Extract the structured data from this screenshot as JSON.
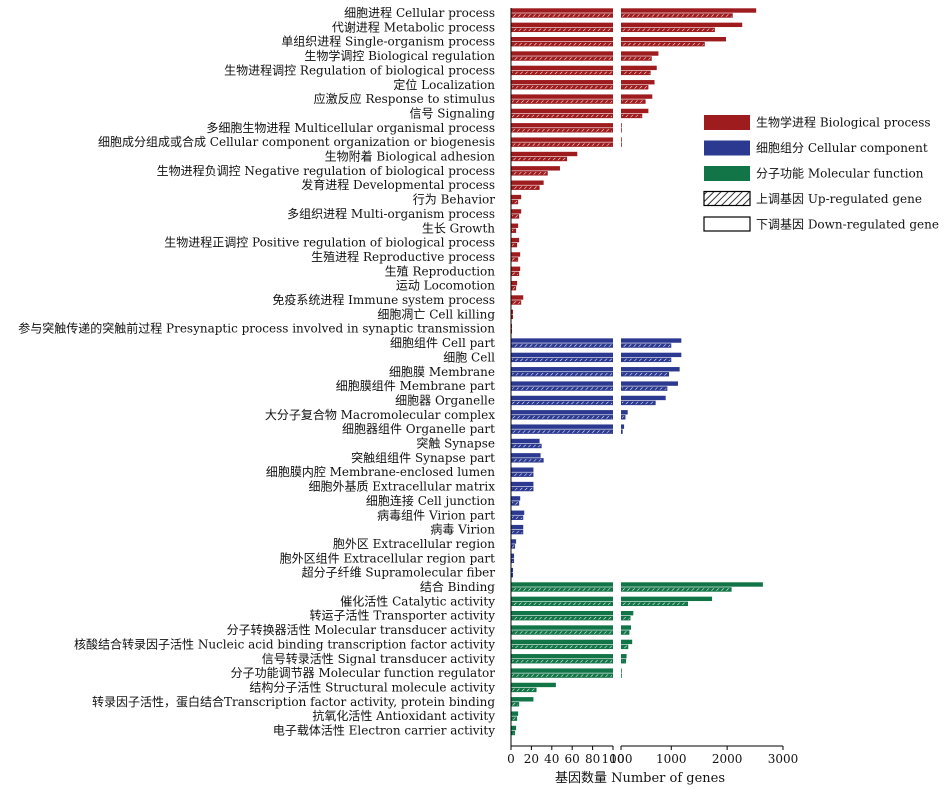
{
  "chart_data": {
    "type": "bar",
    "orientation": "horizontal",
    "xlabel": "基因数量 Number of genes",
    "x_axis_broken": true,
    "x_ticks_left": [
      0,
      20,
      40,
      60,
      80,
      100
    ],
    "x_ticks_right": [
      100,
      1000,
      2000,
      3000
    ],
    "xlim_left": [
      0,
      100
    ],
    "xlim_right": [
      100,
      3000
    ],
    "series_names": [
      "Up-regulated gene",
      "Down-regulated gene"
    ],
    "legend": {
      "position": "right",
      "items": [
        {
          "label": "生物学进程 Biological process",
          "kind": "group",
          "color": "#9E1B1E"
        },
        {
          "label": "细胞组分 Cellular component",
          "kind": "group",
          "color": "#2B3990"
        },
        {
          "label": "分子功能 Molecular function",
          "kind": "group",
          "color": "#127547"
        },
        {
          "label": "上调基因 Up-regulated gene",
          "kind": "pattern",
          "pattern": "hatch"
        },
        {
          "label": "下调基因 Down-regulated gene",
          "kind": "pattern",
          "pattern": "solid"
        }
      ]
    },
    "groups": [
      {
        "name": "生物学进程 Biological process",
        "color": "#9E1B1E",
        "categories": [
          {
            "label": "细胞进程 Cellular process",
            "up": 2100,
            "down": 2520
          },
          {
            "label": "代谢进程 Metabolic process",
            "up": 1780,
            "down": 2270
          },
          {
            "label": "单组织进程 Single-organism process",
            "up": 1600,
            "down": 1980
          },
          {
            "label": "生物学调控 Biological regulation",
            "up": 650,
            "down": 770
          },
          {
            "label": "生物进程调控 Regulation of biological process",
            "up": 630,
            "down": 740
          },
          {
            "label": "定位 Localization",
            "up": 590,
            "down": 700
          },
          {
            "label": "应激反应 Response to stimulus",
            "up": 540,
            "down": 660
          },
          {
            "label": "信号 Signaling",
            "up": 480,
            "down": 590
          },
          {
            "label": "多细胞生物进程 Multicellular organismal process",
            "up": 103,
            "down": 105
          },
          {
            "label": "细胞成分组成或合成 Cellular component organization or biogenesis",
            "up": 101,
            "down": 102
          },
          {
            "label": "生物附着 Biological adhesion",
            "up": 55,
            "down": 65
          },
          {
            "label": "生物进程负调控 Negative regulation of biological process",
            "up": 36,
            "down": 48
          },
          {
            "label": "发育进程 Developmental process",
            "up": 28,
            "down": 32
          },
          {
            "label": "行为 Behavior",
            "up": 7,
            "down": 10
          },
          {
            "label": "多组织进程 Multi-organism process",
            "up": 8,
            "down": 10
          },
          {
            "label": "生长 Growth",
            "up": 5,
            "down": 7
          },
          {
            "label": "生物进程正调控 Positive regulation of biological process",
            "up": 6,
            "down": 8
          },
          {
            "label": "生殖进程 Reproductive process",
            "up": 7,
            "down": 9
          },
          {
            "label": "生殖 Reproduction",
            "up": 8,
            "down": 9
          },
          {
            "label": "运动 Locomotion",
            "up": 5,
            "down": 6
          },
          {
            "label": "免疫系统进程 Immune system process",
            "up": 10,
            "down": 12
          },
          {
            "label": "细胞凋亡 Cell killing",
            "up": 2,
            "down": 2
          },
          {
            "label": "参与突触传递的突触前过程 Presynaptic process involved in synaptic transmission",
            "up": 1,
            "down": 1
          }
        ]
      },
      {
        "name": "细胞组分 Cellular component",
        "color": "#2B3990",
        "categories": [
          {
            "label": "细胞组件 Cell part",
            "up": 1000,
            "down": 1180
          },
          {
            "label": "细胞 Cell",
            "up": 1000,
            "down": 1180
          },
          {
            "label": "细胞膜 Membrane",
            "up": 960,
            "down": 1150
          },
          {
            "label": "细胞膜组件 Membrane part",
            "up": 930,
            "down": 1120
          },
          {
            "label": "细胞器 Organelle",
            "up": 720,
            "down": 900
          },
          {
            "label": "大分子复合物 Macromolecular complex",
            "up": 180,
            "down": 220
          },
          {
            "label": "细胞器组件 Organelle part",
            "up": 130,
            "down": 155
          },
          {
            "label": "突触 Synapse",
            "up": 30,
            "down": 28
          },
          {
            "label": "突触组组件 Synapse part",
            "up": 32,
            "down": 29
          },
          {
            "label": "细胞膜内腔 Membrane-enclosed lumen",
            "up": 22,
            "down": 22
          },
          {
            "label": "细胞外基质 Extracellular matrix",
            "up": 22,
            "down": 22
          },
          {
            "label": "细胞连接 Cell junction",
            "up": 8,
            "down": 9
          },
          {
            "label": "病毒组件 Virion part",
            "up": 12,
            "down": 13
          },
          {
            "label": "病毒 Virion",
            "up": 12,
            "down": 12
          },
          {
            "label": "胞外区 Extracellular region",
            "up": 4,
            "down": 5
          },
          {
            "label": "胞外区组件 Extracellular region part",
            "up": 3,
            "down": 3
          },
          {
            "label": "超分子纤维 Supramolecular fiber",
            "up": 2,
            "down": 2
          }
        ]
      },
      {
        "name": "分子功能 Molecular function",
        "color": "#127547",
        "categories": [
          {
            "label": "结合 Binding",
            "up": 2080,
            "down": 2640
          },
          {
            "label": "催化活性 Catalytic activity",
            "up": 1300,
            "down": 1730
          },
          {
            "label": "转运子活性 Transporter activity",
            "up": 270,
            "down": 320
          },
          {
            "label": "分子转换器活性 Molecular transducer activity",
            "up": 250,
            "down": 280
          },
          {
            "label": "核酸结合转录因子活性 Nucleic acid binding transcription factor activity",
            "up": 230,
            "down": 300
          },
          {
            "label": "信号转录活性 Signal transducer activity",
            "up": 190,
            "down": 200
          },
          {
            "label": "分子功能调节器 Molecular function regulator",
            "up": 101,
            "down": 104
          },
          {
            "label": "结构分子活性 Structural molecule activity",
            "up": 25,
            "down": 44
          },
          {
            "label": "转录因子活性，蛋白结合Transcription factor activity, protein binding",
            "up": 8,
            "down": 22
          },
          {
            "label": "抗氧化活性 Antioxidant activity",
            "up": 6,
            "down": 7
          },
          {
            "label": "电子载体活性 Electron carrier activity",
            "up": 4,
            "down": 5
          }
        ]
      }
    ]
  }
}
